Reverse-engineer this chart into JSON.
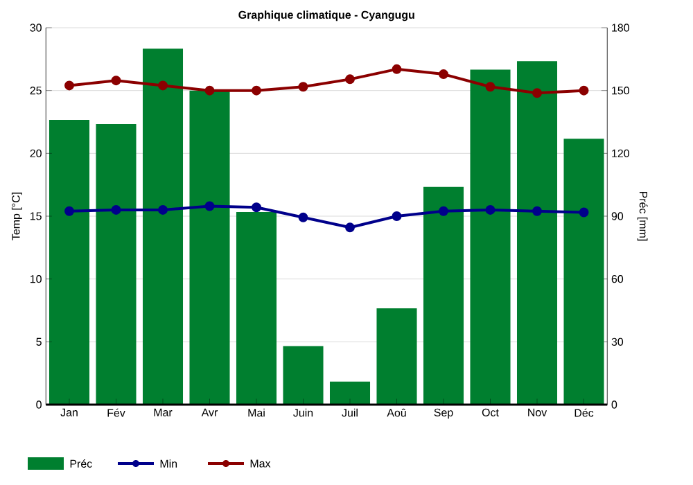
{
  "chart_data": {
    "type": "bar",
    "title": "Graphique climatique - Cyangugu",
    "ylabel": "Temp [°C]",
    "y2label": "Préc [mm]",
    "categories": [
      "Jan",
      "Fév",
      "Mar",
      "Avr",
      "Mai",
      "Juin",
      "Juil",
      "Aoû",
      "Sep",
      "Oct",
      "Nov",
      "Déc"
    ],
    "series": [
      {
        "name": "Préc",
        "axis": "y2",
        "color": "#007f2f",
        "values": [
          136,
          134,
          170,
          150,
          92,
          28,
          11,
          46,
          104,
          160,
          164,
          127
        ]
      },
      {
        "name": "Min",
        "type": "line",
        "color": "#00008b",
        "values": [
          15.4,
          15.5,
          15.5,
          15.8,
          15.7,
          14.9,
          14.1,
          15.0,
          15.4,
          15.5,
          15.4,
          15.3
        ]
      },
      {
        "name": "Max",
        "type": "line",
        "color": "#8b0000",
        "values": [
          25.4,
          25.8,
          25.4,
          25.0,
          25.0,
          25.3,
          25.9,
          26.7,
          26.3,
          25.3,
          24.8,
          25.0
        ]
      }
    ],
    "ylim": [
      0,
      30
    ],
    "yticks": [
      0,
      5,
      10,
      15,
      20,
      25,
      30
    ],
    "y2lim": [
      0,
      180
    ],
    "y2ticks": [
      0,
      30,
      60,
      90,
      120,
      150,
      180
    ],
    "grid": "y",
    "legend": "bottom",
    "marker": "circle",
    "line_style": "solid"
  }
}
